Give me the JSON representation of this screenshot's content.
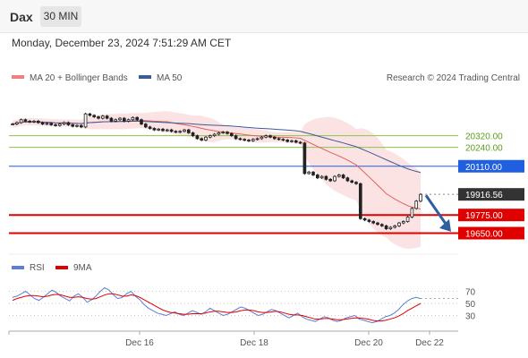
{
  "header": {
    "symbol": "Dax",
    "timeframe": "30 MIN",
    "datetime": "Monday, December 23, 2024 7:51:29 AM CET"
  },
  "credit": "Research © 2024 Trading Central",
  "colors": {
    "bollinger": "#f08080",
    "ma50": "#3d5a99",
    "ma20_line": "#e06060",
    "resistance_green": "#8bc34a",
    "pivot_blue": "#1f5fe0",
    "support_red": "#e00000",
    "price_tag": "#333333",
    "rsi": "#5b7fd6",
    "rsi_ma": "#e00000",
    "arrow": "#2f5f9f",
    "candle": "#222222"
  },
  "chart_data": [
    {
      "type": "candlestick",
      "legend": [
        {
          "name": "MA 20 + Bollinger Bands",
          "color": "#f08080"
        },
        {
          "name": "MA 50",
          "color": "#3d5a99"
        }
      ],
      "x_ticks": [
        "Dec 16",
        "Dec 18",
        "Dec 20",
        "Dec 22"
      ],
      "levels": [
        {
          "value": 20320.0,
          "label": "20320.00",
          "kind": "resistance",
          "color": "#8bc34a"
        },
        {
          "value": 20240.0,
          "label": "20240.00",
          "kind": "resistance",
          "color": "#8bc34a"
        },
        {
          "value": 20110.0,
          "label": "20110.00",
          "kind": "pivot",
          "color": "#1f5fe0"
        },
        {
          "value": 19775.0,
          "label": "19775.00",
          "kind": "support",
          "color": "#e00000"
        },
        {
          "value": 19650.0,
          "label": "19650.00",
          "kind": "support",
          "color": "#e00000"
        }
      ],
      "last_price": {
        "value": 19916.56,
        "label": "19916.56"
      },
      "ylim": [
        19530,
        20650
      ],
      "forecast_arrow": {
        "from": 19910,
        "to": 19660,
        "direction": "down"
      },
      "closes": [
        20400,
        20410,
        20430,
        20420,
        20415,
        20420,
        20410,
        20400,
        20405,
        20395,
        20390,
        20400,
        20410,
        20395,
        20385,
        20390,
        20380,
        20470,
        20460,
        20450,
        20440,
        20455,
        20440,
        20420,
        20430,
        20440,
        20420,
        20430,
        20445,
        20430,
        20400,
        20380,
        20370,
        20360,
        20365,
        20355,
        20360,
        20350,
        20345,
        20350,
        20360,
        20340,
        20320,
        20300,
        20290,
        20310,
        20320,
        20330,
        20340,
        20345,
        20335,
        20320,
        20300,
        20295,
        20290,
        20285,
        20295,
        20300,
        20310,
        20320,
        20310,
        20300,
        20295,
        20290,
        20280,
        20285,
        20275,
        20270,
        20060,
        20070,
        20050,
        20030,
        20040,
        20020,
        20010,
        20040,
        20050,
        20030,
        20010,
        20000,
        19990,
        19750,
        19740,
        19730,
        19720,
        19710,
        19700,
        19680,
        19690,
        19700,
        19720,
        19730,
        19760,
        19820,
        19870,
        19916.56
      ]
    },
    {
      "type": "line",
      "title": "RSI",
      "legend": [
        {
          "name": "RSI",
          "color": "#5b7fd6"
        },
        {
          "name": "9MA",
          "color": "#e00000"
        }
      ],
      "y_ticks": [
        70,
        50,
        30
      ],
      "ylim": [
        10,
        90
      ],
      "series": [
        {
          "name": "RSI",
          "values": [
            60,
            62,
            66,
            70,
            64,
            58,
            55,
            60,
            66,
            72,
            68,
            62,
            58,
            54,
            62,
            66,
            60,
            52,
            56,
            62,
            70,
            76,
            72,
            64,
            58,
            60,
            66,
            70,
            62,
            56,
            48,
            42,
            38,
            34,
            32,
            30,
            33,
            36,
            32,
            30,
            34,
            38,
            35,
            32,
            36,
            42,
            38,
            34,
            30,
            32,
            36,
            40,
            44,
            42,
            38,
            34,
            30,
            32,
            36,
            40,
            38,
            34,
            30,
            26,
            30,
            34,
            28,
            24,
            22,
            20,
            24,
            28,
            26,
            22,
            20,
            22,
            26,
            28,
            30,
            24,
            22,
            20,
            18,
            20,
            24,
            28,
            30,
            34,
            40,
            48,
            54,
            58,
            60,
            58
          ]
        },
        {
          "name": "9MA",
          "values": [
            55,
            58,
            60,
            62,
            63,
            63,
            62,
            61,
            62,
            64,
            65,
            64,
            62,
            60,
            60,
            61,
            60,
            58,
            57,
            58,
            61,
            64,
            66,
            66,
            64,
            62,
            62,
            64,
            63,
            60,
            56,
            52,
            48,
            44,
            40,
            37,
            35,
            34,
            33,
            32,
            32,
            33,
            33,
            33,
            34,
            36,
            37,
            37,
            36,
            35,
            35,
            36,
            38,
            39,
            39,
            38,
            36,
            35,
            35,
            36,
            37,
            36,
            34,
            32,
            31,
            31,
            30,
            28,
            26,
            24,
            24,
            25,
            25,
            24,
            23,
            23,
            24,
            25,
            26,
            26,
            25,
            24,
            22,
            21,
            21,
            22,
            24,
            26,
            29,
            33,
            38,
            42,
            46,
            50
          ]
        }
      ]
    }
  ]
}
